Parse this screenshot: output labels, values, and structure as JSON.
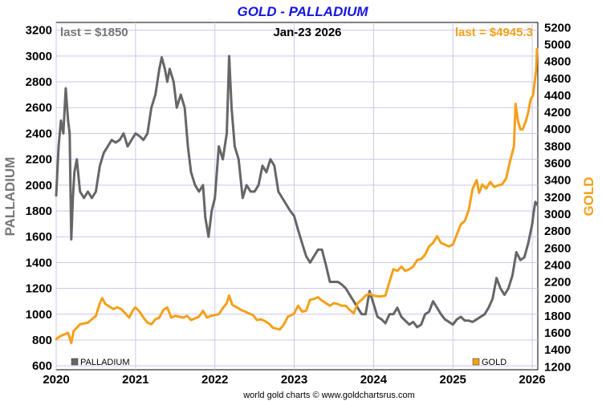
{
  "chart_data": {
    "type": "line",
    "title": "GOLD - PALLADIUM",
    "date_label": "Jan-23  2026",
    "footer": "world gold charts © www.goldchartsrus.com",
    "left_axis": {
      "label": "PALLADIUM",
      "ylim": [
        570,
        3260
      ],
      "ticks": [
        600,
        800,
        1000,
        1200,
        1400,
        1600,
        1800,
        2000,
        2200,
        2400,
        2600,
        2800,
        3000,
        3200
      ],
      "last_text": "last = $1850"
    },
    "right_axis": {
      "label": "GOLD",
      "ylim": [
        1165,
        5260
      ],
      "ticks": [
        1200,
        1400,
        1600,
        1800,
        2000,
        2200,
        2400,
        2600,
        2800,
        3000,
        3200,
        3400,
        3600,
        3800,
        4000,
        4200,
        4400,
        4600,
        4800,
        5000,
        5200
      ],
      "last_text": "last = $4945.3"
    },
    "x_axis": {
      "xlim": [
        2020.0,
        2026.07
      ],
      "ticks": [
        "2020",
        "2021",
        "2022",
        "2023",
        "2024",
        "2025",
        "2026"
      ]
    },
    "grid": true,
    "legend": [
      {
        "name": "PALLADIUM",
        "color": "#666666"
      },
      {
        "name": "GOLD",
        "color": "#f5a01a"
      }
    ],
    "series": [
      {
        "name": "PALLADIUM",
        "axis": "left",
        "color": "#666666",
        "points": [
          [
            2020.0,
            1920
          ],
          [
            2020.03,
            2300
          ],
          [
            2020.06,
            2500
          ],
          [
            2020.09,
            2400
          ],
          [
            2020.12,
            2750
          ],
          [
            2020.15,
            2500
          ],
          [
            2020.17,
            2400
          ],
          [
            2020.19,
            1580
          ],
          [
            2020.21,
            1900
          ],
          [
            2020.23,
            2100
          ],
          [
            2020.26,
            2200
          ],
          [
            2020.3,
            1950
          ],
          [
            2020.35,
            1900
          ],
          [
            2020.4,
            1950
          ],
          [
            2020.45,
            1900
          ],
          [
            2020.5,
            1950
          ],
          [
            2020.55,
            2150
          ],
          [
            2020.6,
            2250
          ],
          [
            2020.65,
            2300
          ],
          [
            2020.7,
            2350
          ],
          [
            2020.75,
            2330
          ],
          [
            2020.8,
            2350
          ],
          [
            2020.85,
            2400
          ],
          [
            2020.9,
            2300
          ],
          [
            2020.95,
            2350
          ],
          [
            2021.0,
            2400
          ],
          [
            2021.05,
            2380
          ],
          [
            2021.1,
            2350
          ],
          [
            2021.15,
            2400
          ],
          [
            2021.2,
            2600
          ],
          [
            2021.25,
            2700
          ],
          [
            2021.3,
            2900
          ],
          [
            2021.33,
            2990
          ],
          [
            2021.37,
            2900
          ],
          [
            2021.4,
            2800
          ],
          [
            2021.43,
            2900
          ],
          [
            2021.48,
            2800
          ],
          [
            2021.52,
            2600
          ],
          [
            2021.57,
            2700
          ],
          [
            2021.62,
            2600
          ],
          [
            2021.66,
            2300
          ],
          [
            2021.7,
            2100
          ],
          [
            2021.75,
            2000
          ],
          [
            2021.8,
            1950
          ],
          [
            2021.85,
            2000
          ],
          [
            2021.88,
            1750
          ],
          [
            2021.92,
            1600
          ],
          [
            2021.96,
            1800
          ],
          [
            2022.0,
            1900
          ],
          [
            2022.05,
            2300
          ],
          [
            2022.1,
            2200
          ],
          [
            2022.15,
            2400
          ],
          [
            2022.18,
            3000
          ],
          [
            2022.21,
            2600
          ],
          [
            2022.25,
            2300
          ],
          [
            2022.3,
            2200
          ],
          [
            2022.35,
            1900
          ],
          [
            2022.4,
            2000
          ],
          [
            2022.45,
            1950
          ],
          [
            2022.5,
            1950
          ],
          [
            2022.55,
            2000
          ],
          [
            2022.6,
            2150
          ],
          [
            2022.65,
            2100
          ],
          [
            2022.7,
            2200
          ],
          [
            2022.75,
            2150
          ],
          [
            2022.8,
            1950
          ],
          [
            2022.85,
            1900
          ],
          [
            2022.9,
            1850
          ],
          [
            2022.95,
            1800
          ],
          [
            2023.0,
            1760
          ],
          [
            2023.05,
            1650
          ],
          [
            2023.1,
            1550
          ],
          [
            2023.15,
            1450
          ],
          [
            2023.2,
            1400
          ],
          [
            2023.25,
            1450
          ],
          [
            2023.3,
            1500
          ],
          [
            2023.35,
            1500
          ],
          [
            2023.4,
            1380
          ],
          [
            2023.45,
            1250
          ],
          [
            2023.5,
            1250
          ],
          [
            2023.55,
            1250
          ],
          [
            2023.6,
            1230
          ],
          [
            2023.65,
            1200
          ],
          [
            2023.7,
            1150
          ],
          [
            2023.75,
            1100
          ],
          [
            2023.8,
            1050
          ],
          [
            2023.85,
            1000
          ],
          [
            2023.9,
            1000
          ],
          [
            2023.95,
            1180
          ],
          [
            2024.0,
            1080
          ],
          [
            2024.05,
            980
          ],
          [
            2024.1,
            960
          ],
          [
            2024.15,
            930
          ],
          [
            2024.2,
            1000
          ],
          [
            2024.25,
            1000
          ],
          [
            2024.3,
            1050
          ],
          [
            2024.35,
            980
          ],
          [
            2024.4,
            950
          ],
          [
            2024.45,
            920
          ],
          [
            2024.5,
            940
          ],
          [
            2024.55,
            900
          ],
          [
            2024.6,
            920
          ],
          [
            2024.65,
            1000
          ],
          [
            2024.7,
            1020
          ],
          [
            2024.75,
            1100
          ],
          [
            2024.8,
            1050
          ],
          [
            2024.85,
            1000
          ],
          [
            2024.9,
            960
          ],
          [
            2024.95,
            940
          ],
          [
            2025.0,
            920
          ],
          [
            2025.05,
            960
          ],
          [
            2025.1,
            980
          ],
          [
            2025.15,
            950
          ],
          [
            2025.2,
            950
          ],
          [
            2025.25,
            940
          ],
          [
            2025.3,
            960
          ],
          [
            2025.35,
            980
          ],
          [
            2025.4,
            1000
          ],
          [
            2025.45,
            1050
          ],
          [
            2025.5,
            1120
          ],
          [
            2025.55,
            1280
          ],
          [
            2025.6,
            1200
          ],
          [
            2025.65,
            1150
          ],
          [
            2025.7,
            1200
          ],
          [
            2025.75,
            1300
          ],
          [
            2025.8,
            1480
          ],
          [
            2025.85,
            1420
          ],
          [
            2025.9,
            1440
          ],
          [
            2025.95,
            1550
          ],
          [
            2026.0,
            1700
          ],
          [
            2026.02,
            1800
          ],
          [
            2026.04,
            1870
          ],
          [
            2026.06,
            1850
          ]
        ]
      },
      {
        "name": "GOLD",
        "axis": "right",
        "color": "#f5a01a",
        "points": [
          [
            2020.0,
            1525
          ],
          [
            2020.05,
            1560
          ],
          [
            2020.1,
            1580
          ],
          [
            2020.15,
            1600
          ],
          [
            2020.19,
            1480
          ],
          [
            2020.22,
            1620
          ],
          [
            2020.25,
            1650
          ],
          [
            2020.3,
            1700
          ],
          [
            2020.35,
            1710
          ],
          [
            2020.4,
            1720
          ],
          [
            2020.45,
            1760
          ],
          [
            2020.5,
            1800
          ],
          [
            2020.55,
            1950
          ],
          [
            2020.58,
            2010
          ],
          [
            2020.62,
            1940
          ],
          [
            2020.67,
            1910
          ],
          [
            2020.72,
            1880
          ],
          [
            2020.77,
            1900
          ],
          [
            2020.82,
            1880
          ],
          [
            2020.87,
            1830
          ],
          [
            2020.92,
            1780
          ],
          [
            2020.97,
            1870
          ],
          [
            2021.0,
            1900
          ],
          [
            2021.05,
            1850
          ],
          [
            2021.1,
            1780
          ],
          [
            2021.15,
            1720
          ],
          [
            2021.2,
            1700
          ],
          [
            2021.25,
            1760
          ],
          [
            2021.3,
            1780
          ],
          [
            2021.35,
            1870
          ],
          [
            2021.4,
            1900
          ],
          [
            2021.45,
            1780
          ],
          [
            2021.5,
            1800
          ],
          [
            2021.55,
            1790
          ],
          [
            2021.6,
            1780
          ],
          [
            2021.65,
            1800
          ],
          [
            2021.7,
            1750
          ],
          [
            2021.75,
            1770
          ],
          [
            2021.8,
            1790
          ],
          [
            2021.85,
            1860
          ],
          [
            2021.9,
            1780
          ],
          [
            2021.95,
            1800
          ],
          [
            2022.0,
            1810
          ],
          [
            2022.05,
            1820
          ],
          [
            2022.1,
            1890
          ],
          [
            2022.15,
            1950
          ],
          [
            2022.18,
            2040
          ],
          [
            2022.22,
            1930
          ],
          [
            2022.28,
            1900
          ],
          [
            2022.33,
            1870
          ],
          [
            2022.38,
            1850
          ],
          [
            2022.43,
            1830
          ],
          [
            2022.48,
            1810
          ],
          [
            2022.53,
            1750
          ],
          [
            2022.58,
            1760
          ],
          [
            2022.63,
            1740
          ],
          [
            2022.68,
            1710
          ],
          [
            2022.73,
            1660
          ],
          [
            2022.77,
            1650
          ],
          [
            2022.82,
            1640
          ],
          [
            2022.87,
            1700
          ],
          [
            2022.92,
            1790
          ],
          [
            2022.97,
            1810
          ],
          [
            2023.0,
            1830
          ],
          [
            2023.05,
            1920
          ],
          [
            2023.1,
            1850
          ],
          [
            2023.15,
            1860
          ],
          [
            2023.2,
            1990
          ],
          [
            2023.25,
            2000
          ],
          [
            2023.3,
            2020
          ],
          [
            2023.35,
            1980
          ],
          [
            2023.4,
            1950
          ],
          [
            2023.45,
            1920
          ],
          [
            2023.5,
            1950
          ],
          [
            2023.55,
            1940
          ],
          [
            2023.6,
            1920
          ],
          [
            2023.65,
            1920
          ],
          [
            2023.7,
            1870
          ],
          [
            2023.75,
            1830
          ],
          [
            2023.8,
            1950
          ],
          [
            2023.85,
            1990
          ],
          [
            2023.9,
            2040
          ],
          [
            2023.95,
            2060
          ],
          [
            2024.0,
            2040
          ],
          [
            2024.05,
            2030
          ],
          [
            2024.1,
            2030
          ],
          [
            2024.15,
            2040
          ],
          [
            2024.2,
            2200
          ],
          [
            2024.25,
            2350
          ],
          [
            2024.3,
            2330
          ],
          [
            2024.35,
            2380
          ],
          [
            2024.4,
            2330
          ],
          [
            2024.45,
            2350
          ],
          [
            2024.5,
            2380
          ],
          [
            2024.55,
            2460
          ],
          [
            2024.6,
            2470
          ],
          [
            2024.65,
            2520
          ],
          [
            2024.7,
            2620
          ],
          [
            2024.75,
            2660
          ],
          [
            2024.8,
            2740
          ],
          [
            2024.85,
            2660
          ],
          [
            2024.9,
            2640
          ],
          [
            2024.95,
            2620
          ],
          [
            2025.0,
            2640
          ],
          [
            2025.05,
            2760
          ],
          [
            2025.1,
            2880
          ],
          [
            2025.15,
            2920
          ],
          [
            2025.2,
            3050
          ],
          [
            2025.25,
            3300
          ],
          [
            2025.3,
            3400
          ],
          [
            2025.33,
            3250
          ],
          [
            2025.37,
            3350
          ],
          [
            2025.42,
            3300
          ],
          [
            2025.47,
            3380
          ],
          [
            2025.52,
            3320
          ],
          [
            2025.57,
            3340
          ],
          [
            2025.62,
            3350
          ],
          [
            2025.67,
            3420
          ],
          [
            2025.72,
            3620
          ],
          [
            2025.77,
            3800
          ],
          [
            2025.79,
            4300
          ],
          [
            2025.82,
            4100
          ],
          [
            2025.85,
            4000
          ],
          [
            2025.88,
            4000
          ],
          [
            2025.92,
            4100
          ],
          [
            2025.95,
            4200
          ],
          [
            2025.98,
            4350
          ],
          [
            2026.01,
            4400
          ],
          [
            2026.03,
            4550
          ],
          [
            2026.05,
            4700
          ],
          [
            2026.06,
            4945
          ]
        ]
      }
    ]
  }
}
